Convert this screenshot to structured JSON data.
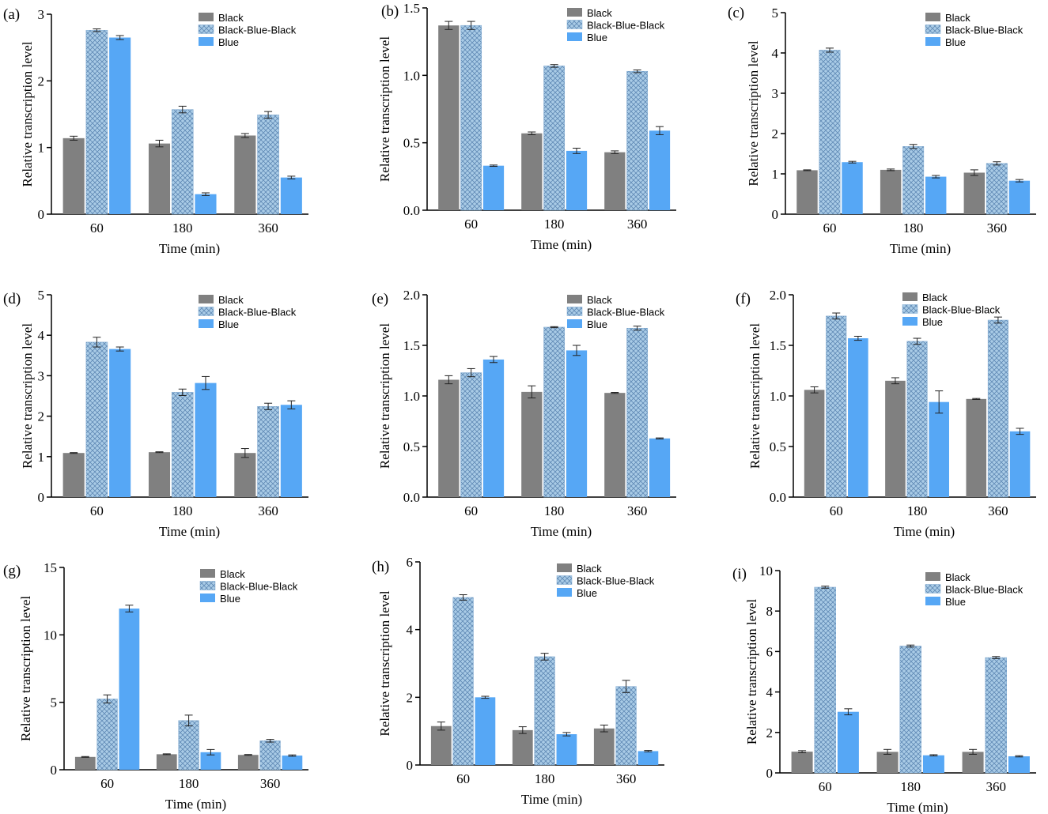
{
  "colors": {
    "black": "#808080",
    "bbb": "#9ec3e2",
    "blue": "#56a7f5",
    "axis": "#000000"
  },
  "legend": [
    "Black",
    "Black-Blue-Black",
    "Blue"
  ],
  "chart_data": [
    {
      "type": "bar",
      "label": "(a)",
      "categories": [
        "60",
        "180",
        "360"
      ],
      "xlabel": "Time (min)",
      "ylabel": "Relative transcription level",
      "ylim": [
        0,
        3
      ],
      "yticks": [
        "0",
        "1",
        "2",
        "3"
      ],
      "series": [
        {
          "name": "Black",
          "values": [
            1.14,
            1.06,
            1.18
          ],
          "errors": [
            0.03,
            0.05,
            0.03
          ]
        },
        {
          "name": "Black-Blue-Black",
          "values": [
            2.76,
            1.57,
            1.49
          ],
          "errors": [
            0.02,
            0.05,
            0.05
          ]
        },
        {
          "name": "Blue",
          "values": [
            2.65,
            0.3,
            0.55
          ],
          "errors": [
            0.03,
            0.02,
            0.02
          ]
        }
      ]
    },
    {
      "type": "bar",
      "label": "(b)",
      "categories": [
        "60",
        "180",
        "360"
      ],
      "xlabel": "Time (min)",
      "ylabel": "Relative transcription level",
      "ylim": [
        0,
        1.5
      ],
      "yticks": [
        "0.0",
        "0.5",
        "1.0",
        "1.5"
      ],
      "series": [
        {
          "name": "Black",
          "values": [
            1.37,
            0.57,
            0.43
          ],
          "errors": [
            0.03,
            0.01,
            0.01
          ]
        },
        {
          "name": "Black-Blue-Black",
          "values": [
            1.37,
            1.07,
            1.03
          ],
          "errors": [
            0.03,
            0.01,
            0.01
          ]
        },
        {
          "name": "Blue",
          "values": [
            0.33,
            0.44,
            0.59
          ],
          "errors": [
            0.005,
            0.02,
            0.03
          ]
        }
      ]
    },
    {
      "type": "bar",
      "label": "(c)",
      "categories": [
        "60",
        "180",
        "360"
      ],
      "xlabel": "Time (min)",
      "ylabel": "Relative transcription level",
      "ylim": [
        0,
        5
      ],
      "yticks": [
        "0",
        "1",
        "2",
        "3",
        "4",
        "5"
      ],
      "series": [
        {
          "name": "Black",
          "values": [
            1.09,
            1.1,
            1.03
          ],
          "errors": [
            0.01,
            0.02,
            0.07
          ]
        },
        {
          "name": "Black-Blue-Black",
          "values": [
            4.07,
            1.68,
            1.26
          ],
          "errors": [
            0.05,
            0.05,
            0.04
          ]
        },
        {
          "name": "Blue",
          "values": [
            1.29,
            0.93,
            0.83
          ],
          "errors": [
            0.02,
            0.03,
            0.03
          ]
        }
      ]
    },
    {
      "type": "bar",
      "label": "(d)",
      "categories": [
        "60",
        "180",
        "360"
      ],
      "xlabel": "Time (min)",
      "ylabel": "Relative transcription level",
      "ylim": [
        0,
        5
      ],
      "yticks": [
        "0",
        "1",
        "2",
        "3",
        "4",
        "5"
      ],
      "series": [
        {
          "name": "Black",
          "values": [
            1.09,
            1.11,
            1.09
          ],
          "errors": [
            0.01,
            0.01,
            0.11
          ]
        },
        {
          "name": "Black-Blue-Black",
          "values": [
            3.83,
            2.59,
            2.24
          ],
          "errors": [
            0.12,
            0.08,
            0.08
          ]
        },
        {
          "name": "Blue",
          "values": [
            3.66,
            2.82,
            2.28
          ],
          "errors": [
            0.05,
            0.16,
            0.1
          ]
        }
      ]
    },
    {
      "type": "bar",
      "label": "(e)",
      "categories": [
        "60",
        "180",
        "360"
      ],
      "xlabel": "Time (min)",
      "ylabel": "Relative transcription level",
      "ylim": [
        0,
        2.0
      ],
      "yticks": [
        "0.0",
        "0.5",
        "1.0",
        "1.5",
        "2.0"
      ],
      "series": [
        {
          "name": "Black",
          "values": [
            1.16,
            1.04,
            1.03
          ],
          "errors": [
            0.04,
            0.06,
            0.005
          ]
        },
        {
          "name": "Black-Blue-Black",
          "values": [
            1.23,
            1.68,
            1.67
          ],
          "errors": [
            0.04,
            0.005,
            0.02
          ]
        },
        {
          "name": "Blue",
          "values": [
            1.36,
            1.45,
            0.58
          ],
          "errors": [
            0.03,
            0.05,
            0.005
          ]
        }
      ]
    },
    {
      "type": "bar",
      "label": "(f)",
      "categories": [
        "60",
        "180",
        "360"
      ],
      "xlabel": "Time (min)",
      "ylabel": "Relative transcription level",
      "ylim": [
        0,
        2.0
      ],
      "yticks": [
        "0.0",
        "0.5",
        "1.0",
        "1.5",
        "2.0"
      ],
      "series": [
        {
          "name": "Black",
          "values": [
            1.06,
            1.15,
            0.97
          ],
          "errors": [
            0.03,
            0.03,
            0.005
          ]
        },
        {
          "name": "Black-Blue-Black",
          "values": [
            1.79,
            1.54,
            1.75
          ],
          "errors": [
            0.03,
            0.03,
            0.03
          ]
        },
        {
          "name": "Blue",
          "values": [
            1.57,
            0.94,
            0.65
          ],
          "errors": [
            0.02,
            0.11,
            0.03
          ]
        }
      ]
    },
    {
      "type": "bar",
      "label": "(g)",
      "categories": [
        "60",
        "180",
        "360"
      ],
      "xlabel": "Time (min)",
      "ylabel": "Relative transcription level",
      "ylim": [
        0,
        15
      ],
      "yticks": [
        "0",
        "5",
        "10",
        "15"
      ],
      "series": [
        {
          "name": "Black",
          "values": [
            0.95,
            1.15,
            1.1
          ],
          "errors": [
            0.03,
            0.03,
            0.03
          ]
        },
        {
          "name": "Black-Blue-Black",
          "values": [
            5.25,
            3.65,
            2.15
          ],
          "errors": [
            0.3,
            0.4,
            0.1
          ]
        },
        {
          "name": "Blue",
          "values": [
            11.95,
            1.3,
            1.05
          ],
          "errors": [
            0.25,
            0.2,
            0.05
          ]
        }
      ]
    },
    {
      "type": "bar",
      "label": "(h)",
      "categories": [
        "60",
        "180",
        "360"
      ],
      "xlabel": "Time (min)",
      "ylabel": "Relative transcription level",
      "ylim": [
        0,
        6
      ],
      "yticks": [
        "0",
        "2",
        "4",
        "6"
      ],
      "series": [
        {
          "name": "Black",
          "values": [
            1.15,
            1.03,
            1.08
          ],
          "errors": [
            0.12,
            0.1,
            0.1
          ]
        },
        {
          "name": "Black-Blue-Black",
          "values": [
            4.95,
            3.2,
            2.32
          ],
          "errors": [
            0.08,
            0.1,
            0.18
          ]
        },
        {
          "name": "Blue",
          "values": [
            2.0,
            0.91,
            0.41
          ],
          "errors": [
            0.03,
            0.05,
            0.02
          ]
        }
      ]
    },
    {
      "type": "bar",
      "label": "(i)",
      "categories": [
        "60",
        "180",
        "360"
      ],
      "xlabel": "Time (min)",
      "ylabel": "Relative transcription level",
      "ylim": [
        0,
        10
      ],
      "yticks": [
        "0",
        "2",
        "4",
        "6",
        "8",
        "10"
      ],
      "series": [
        {
          "name": "Black",
          "values": [
            1.05,
            1.04,
            1.04
          ],
          "errors": [
            0.05,
            0.12,
            0.12
          ]
        },
        {
          "name": "Black-Blue-Black",
          "values": [
            9.18,
            6.27,
            5.7
          ],
          "errors": [
            0.05,
            0.05,
            0.05
          ]
        },
        {
          "name": "Blue",
          "values": [
            3.02,
            0.87,
            0.82
          ],
          "errors": [
            0.15,
            0.03,
            0.03
          ]
        }
      ]
    }
  ]
}
